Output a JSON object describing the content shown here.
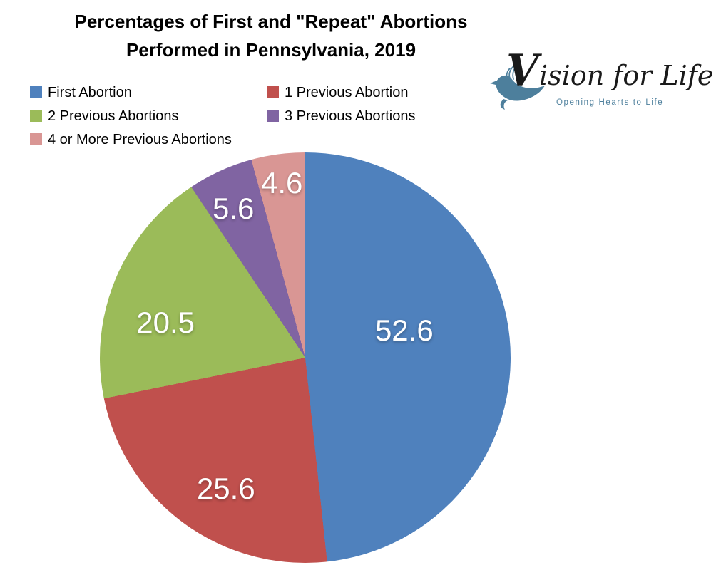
{
  "title": {
    "line1": "Percentages of First and \"Repeat\" Abortions",
    "line2": "Performed in Pennsylvania, 2019"
  },
  "logo": {
    "brand_initial": "V",
    "brand_rest": "ision for Life",
    "tagline": "Opening Hearts to Life",
    "teal_color": "#4D7F9C",
    "text_color": "#1a1a1a"
  },
  "chart_data": {
    "type": "pie",
    "title": "Percentages of First and \"Repeat\" Abortions Performed in Pennsylvania, 2019",
    "unit": "percent",
    "start_angle_deg": 0,
    "direction": "clockwise",
    "legend_position": "top-left, two columns",
    "slices": [
      {
        "label": "First Abortion",
        "value": 52.6,
        "color": "#4F81BD",
        "label_pos": {
          "x_pct": 74.1,
          "y_pct": 43.4
        }
      },
      {
        "label": "1 Previous Abortion",
        "value": 25.6,
        "color": "#C0504D",
        "label_pos": {
          "x_pct": 30.7,
          "y_pct": 82.0
        }
      },
      {
        "label": "2 Previous Abortions",
        "value": 20.5,
        "color": "#9BBB59",
        "label_pos": {
          "x_pct": 16.0,
          "y_pct": 41.5
        }
      },
      {
        "label": "3 Previous Abortions",
        "value": 5.6,
        "color": "#8064A2",
        "label_pos": {
          "x_pct": 32.5,
          "y_pct": 13.7
        }
      },
      {
        "label": "4 or More Previous Abortions",
        "value": 4.6,
        "color": "#D99694",
        "label_pos": {
          "x_pct": 44.3,
          "y_pct": 7.5
        }
      }
    ]
  }
}
